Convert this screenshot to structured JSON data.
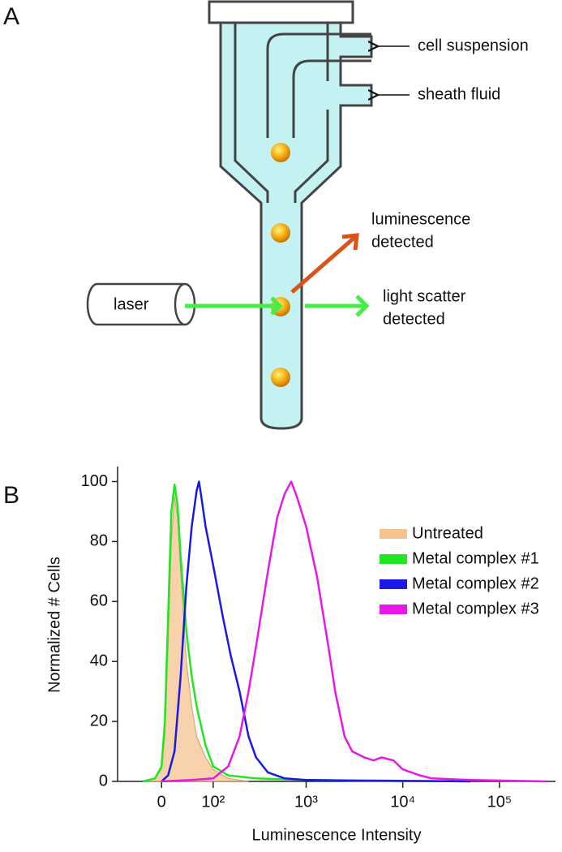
{
  "panel_a": {
    "label": "A",
    "inputs": [
      "cell suspension",
      "sheath fluid"
    ],
    "luminescence_output": [
      "luminescence",
      "detected"
    ],
    "scatter_output": [
      "light scatter",
      "detected"
    ],
    "source": "laser"
  },
  "chart_data": {
    "type": "line",
    "panel_label": "B",
    "x_label": "Luminescence Intensity",
    "y_label": "Normalized # Cells",
    "xscale": "biexponential",
    "xlim": [
      -80,
      380000
    ],
    "ylim": [
      0,
      105
    ],
    "xticks": [
      0,
      {
        "value": 100,
        "label": "10²"
      },
      {
        "value": 1000,
        "label": "10³"
      },
      {
        "value": 10000,
        "label": "10⁴"
      },
      {
        "value": 100000,
        "label": "10⁵"
      }
    ],
    "yticks": [
      0,
      20,
      40,
      60,
      80,
      100
    ],
    "legend": "right",
    "series": [
      {
        "name": "Untreated",
        "color": "#f5c38e",
        "filled": true,
        "x": [
          -30,
          -10,
          0,
          5,
          10,
          15,
          20,
          25,
          30,
          40,
          50,
          60,
          80,
          100,
          150,
          250
        ],
        "values": [
          0,
          1,
          4,
          15,
          45,
          80,
          95,
          88,
          70,
          40,
          25,
          15,
          8,
          4,
          1,
          0
        ]
      },
      {
        "name": "Metal complex #1",
        "color": "#22e622",
        "filled": false,
        "x": [
          -30,
          -10,
          0,
          5,
          10,
          15,
          20,
          25,
          30,
          40,
          50,
          60,
          80,
          100,
          150,
          300,
          1000,
          10000
        ],
        "values": [
          0,
          1,
          5,
          20,
          55,
          90,
          99,
          92,
          75,
          50,
          35,
          25,
          12,
          5,
          2,
          1,
          0.5,
          0
        ]
      },
      {
        "name": "Metal complex #2",
        "color": "#1a1ae6",
        "filled": false,
        "x": [
          0,
          10,
          20,
          30,
          40,
          50,
          60,
          65,
          70,
          80,
          100,
          130,
          160,
          200,
          250,
          300,
          400,
          600,
          1000,
          3000,
          10000,
          50000
        ],
        "values": [
          0,
          2,
          10,
          35,
          65,
          85,
          97,
          100,
          95,
          85,
          72,
          55,
          42,
          30,
          15,
          8,
          3,
          1,
          0.5,
          0.3,
          0.2,
          0
        ]
      },
      {
        "name": "Metal complex #3",
        "color": "#e619e6",
        "filled": false,
        "x": [
          0,
          50,
          100,
          150,
          200,
          250,
          300,
          400,
          500,
          600,
          700,
          800,
          1000,
          1300,
          1700,
          2000,
          2500,
          3000,
          4000,
          5000,
          6000,
          8000,
          10000,
          15000,
          20000,
          50000,
          300000
        ],
        "values": [
          0,
          0.5,
          1,
          5,
          15,
          30,
          45,
          70,
          88,
          96,
          100,
          95,
          85,
          68,
          45,
          30,
          15,
          10,
          8,
          7,
          8,
          7,
          4,
          2,
          1,
          0.5,
          0
        ]
      }
    ]
  }
}
